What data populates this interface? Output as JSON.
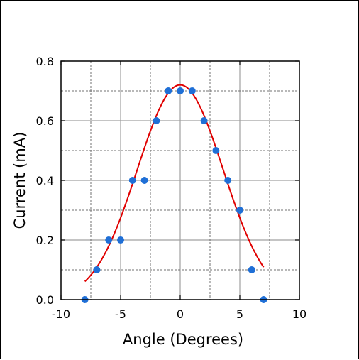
{
  "chart_data": {
    "type": "scatter",
    "xlabel": "Angle (Degrees)",
    "ylabel": "Current (mA)",
    "xlim": [
      -10,
      10
    ],
    "ylim": [
      0,
      0.8
    ],
    "x_ticks": [
      -10,
      -5,
      0,
      5,
      10
    ],
    "x_tick_labels": [
      "-10",
      "-5",
      "0",
      "5",
      "10"
    ],
    "y_ticks": [
      0.0,
      0.2,
      0.4,
      0.6,
      0.8
    ],
    "y_tick_labels": [
      "0.0",
      "0.2",
      "0.4",
      "0.6",
      "0.8"
    ],
    "x_minor_grid": [
      -7.5,
      -2.5,
      2.5,
      7.5
    ],
    "y_minor_grid": [
      0.1,
      0.3,
      0.5,
      0.7
    ],
    "grid": true,
    "series": [
      {
        "kind": "points",
        "color": "#1f6fd6",
        "x": [
          -8,
          -7,
          -6,
          -5,
          -4,
          -3,
          -2,
          -1,
          0,
          1,
          2,
          3,
          4,
          5,
          6,
          7
        ],
        "y": [
          0.0,
          0.1,
          0.2,
          0.2,
          0.4,
          0.4,
          0.6,
          0.7,
          0.7,
          0.7,
          0.6,
          0.5,
          0.4,
          0.3,
          0.1,
          0.0
        ]
      },
      {
        "kind": "fit",
        "color": "#e00000",
        "x_range": [
          -8,
          7
        ],
        "amplitude": 0.72,
        "center": 0.0,
        "sigma": 3.6
      }
    ]
  }
}
